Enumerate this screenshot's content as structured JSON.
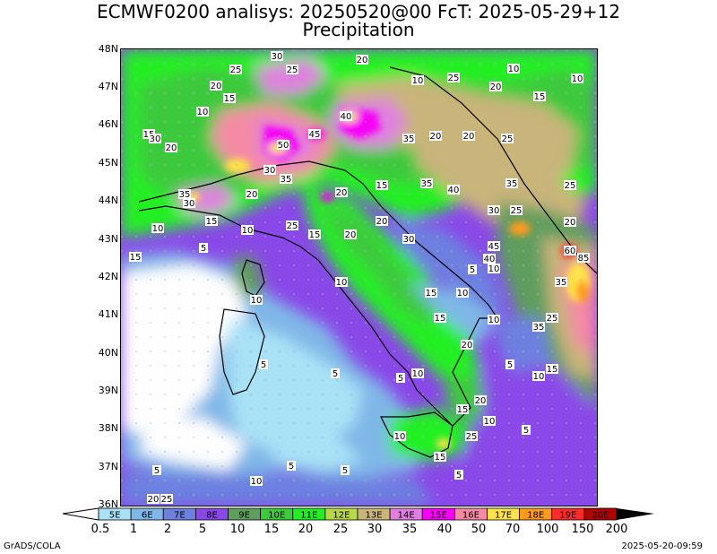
{
  "title_line1": "ECMWF0200 analisys: 20250520@00 FcT: 2025-05-29+12",
  "title_line2": "Precipitation",
  "footer_left": "GrADS/COLA",
  "footer_right": "2025-05-20-09:59",
  "lat_labels": [
    "48N",
    "47N",
    "46N",
    "45N",
    "44N",
    "43N",
    "42N",
    "41N",
    "40N",
    "39N",
    "38N",
    "37N",
    "36N"
  ],
  "colorbar": {
    "box_labels": [
      "5E",
      "6E",
      "7E",
      "8E",
      "9E",
      "10E",
      "11E",
      "12E",
      "13E",
      "14E",
      "15E",
      "16E",
      "17E",
      "18E",
      "19E",
      "20E"
    ],
    "colors": [
      "#a9e2f7",
      "#7fb7e8",
      "#6d80e0",
      "#8a48e8",
      "#5e9e5e",
      "#3cc93c",
      "#22f022",
      "#b8d84a",
      "#c9b47a",
      "#e07fe0",
      "#f600f6",
      "#f58aa4",
      "#ffe34a",
      "#ff9a1c",
      "#ff2b2b",
      "#b30000"
    ],
    "values": [
      "0.5",
      "1",
      "2",
      "5",
      "10",
      "15",
      "20",
      "25",
      "30",
      "35",
      "40",
      "50",
      "70",
      "100",
      "150",
      "200"
    ]
  },
  "contour_labels": [
    "30",
    "25",
    "20",
    "15",
    "10",
    "5",
    "40",
    "35",
    "45",
    "50",
    "60",
    "85"
  ]
}
